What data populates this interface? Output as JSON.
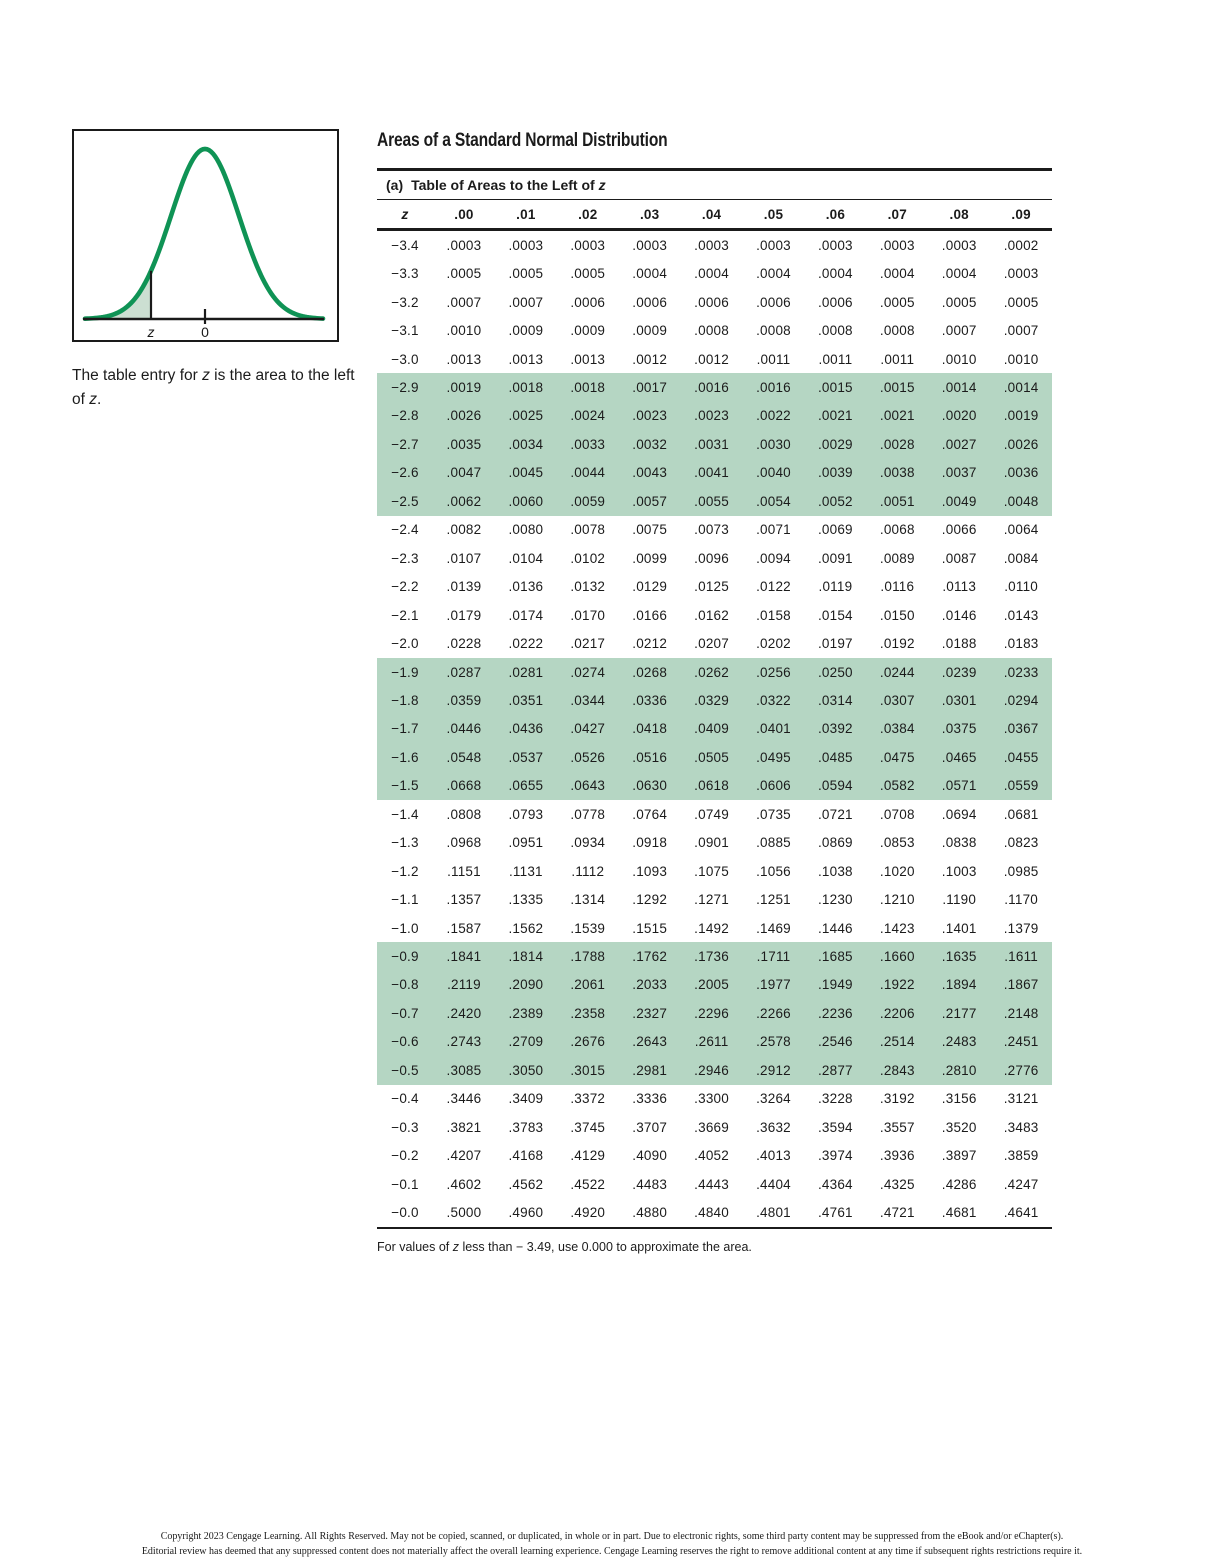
{
  "title": "Areas of a Standard Normal Distribution",
  "figure": {
    "axis_labels": {
      "z": "z",
      "zero": "0"
    },
    "caption": {
      "part1": "The table entry for ",
      "z1": "z",
      "part2": " is the area to the left of ",
      "z2": "z",
      "part3": "."
    }
  },
  "colors": {
    "curve_green": "#0f9355",
    "shade_green": "#ccdfd2",
    "band_green": "#b5d6c3"
  },
  "table": {
    "subtitle": {
      "prefix": "(a)",
      "label": "Table of Areas to the Left of ",
      "z": "z"
    },
    "columns": [
      "z",
      ".00",
      ".01",
      ".02",
      ".03",
      ".04",
      ".05",
      ".06",
      ".07",
      ".08",
      ".09"
    ],
    "rows": [
      [
        "−3.4",
        ".0003",
        ".0003",
        ".0003",
        ".0003",
        ".0003",
        ".0003",
        ".0003",
        ".0003",
        ".0003",
        ".0002"
      ],
      [
        "−3.3",
        ".0005",
        ".0005",
        ".0005",
        ".0004",
        ".0004",
        ".0004",
        ".0004",
        ".0004",
        ".0004",
        ".0003"
      ],
      [
        "−3.2",
        ".0007",
        ".0007",
        ".0006",
        ".0006",
        ".0006",
        ".0006",
        ".0006",
        ".0005",
        ".0005",
        ".0005"
      ],
      [
        "−3.1",
        ".0010",
        ".0009",
        ".0009",
        ".0009",
        ".0008",
        ".0008",
        ".0008",
        ".0008",
        ".0007",
        ".0007"
      ],
      [
        "−3.0",
        ".0013",
        ".0013",
        ".0013",
        ".0012",
        ".0012",
        ".0011",
        ".0011",
        ".0011",
        ".0010",
        ".0010"
      ],
      [
        "−2.9",
        ".0019",
        ".0018",
        ".0018",
        ".0017",
        ".0016",
        ".0016",
        ".0015",
        ".0015",
        ".0014",
        ".0014"
      ],
      [
        "−2.8",
        ".0026",
        ".0025",
        ".0024",
        ".0023",
        ".0023",
        ".0022",
        ".0021",
        ".0021",
        ".0020",
        ".0019"
      ],
      [
        "−2.7",
        ".0035",
        ".0034",
        ".0033",
        ".0032",
        ".0031",
        ".0030",
        ".0029",
        ".0028",
        ".0027",
        ".0026"
      ],
      [
        "−2.6",
        ".0047",
        ".0045",
        ".0044",
        ".0043",
        ".0041",
        ".0040",
        ".0039",
        ".0038",
        ".0037",
        ".0036"
      ],
      [
        "−2.5",
        ".0062",
        ".0060",
        ".0059",
        ".0057",
        ".0055",
        ".0054",
        ".0052",
        ".0051",
        ".0049",
        ".0048"
      ],
      [
        "−2.4",
        ".0082",
        ".0080",
        ".0078",
        ".0075",
        ".0073",
        ".0071",
        ".0069",
        ".0068",
        ".0066",
        ".0064"
      ],
      [
        "−2.3",
        ".0107",
        ".0104",
        ".0102",
        ".0099",
        ".0096",
        ".0094",
        ".0091",
        ".0089",
        ".0087",
        ".0084"
      ],
      [
        "−2.2",
        ".0139",
        ".0136",
        ".0132",
        ".0129",
        ".0125",
        ".0122",
        ".0119",
        ".0116",
        ".0113",
        ".0110"
      ],
      [
        "−2.1",
        ".0179",
        ".0174",
        ".0170",
        ".0166",
        ".0162",
        ".0158",
        ".0154",
        ".0150",
        ".0146",
        ".0143"
      ],
      [
        "−2.0",
        ".0228",
        ".0222",
        ".0217",
        ".0212",
        ".0207",
        ".0202",
        ".0197",
        ".0192",
        ".0188",
        ".0183"
      ],
      [
        "−1.9",
        ".0287",
        ".0281",
        ".0274",
        ".0268",
        ".0262",
        ".0256",
        ".0250",
        ".0244",
        ".0239",
        ".0233"
      ],
      [
        "−1.8",
        ".0359",
        ".0351",
        ".0344",
        ".0336",
        ".0329",
        ".0322",
        ".0314",
        ".0307",
        ".0301",
        ".0294"
      ],
      [
        "−1.7",
        ".0446",
        ".0436",
        ".0427",
        ".0418",
        ".0409",
        ".0401",
        ".0392",
        ".0384",
        ".0375",
        ".0367"
      ],
      [
        "−1.6",
        ".0548",
        ".0537",
        ".0526",
        ".0516",
        ".0505",
        ".0495",
        ".0485",
        ".0475",
        ".0465",
        ".0455"
      ],
      [
        "−1.5",
        ".0668",
        ".0655",
        ".0643",
        ".0630",
        ".0618",
        ".0606",
        ".0594",
        ".0582",
        ".0571",
        ".0559"
      ],
      [
        "−1.4",
        ".0808",
        ".0793",
        ".0778",
        ".0764",
        ".0749",
        ".0735",
        ".0721",
        ".0708",
        ".0694",
        ".0681"
      ],
      [
        "−1.3",
        ".0968",
        ".0951",
        ".0934",
        ".0918",
        ".0901",
        ".0885",
        ".0869",
        ".0853",
        ".0838",
        ".0823"
      ],
      [
        "−1.2",
        ".1151",
        ".1131",
        ".1112",
        ".1093",
        ".1075",
        ".1056",
        ".1038",
        ".1020",
        ".1003",
        ".0985"
      ],
      [
        "−1.1",
        ".1357",
        ".1335",
        ".1314",
        ".1292",
        ".1271",
        ".1251",
        ".1230",
        ".1210",
        ".1190",
        ".1170"
      ],
      [
        "−1.0",
        ".1587",
        ".1562",
        ".1539",
        ".1515",
        ".1492",
        ".1469",
        ".1446",
        ".1423",
        ".1401",
        ".1379"
      ],
      [
        "−0.9",
        ".1841",
        ".1814",
        ".1788",
        ".1762",
        ".1736",
        ".1711",
        ".1685",
        ".1660",
        ".1635",
        ".1611"
      ],
      [
        "−0.8",
        ".2119",
        ".2090",
        ".2061",
        ".2033",
        ".2005",
        ".1977",
        ".1949",
        ".1922",
        ".1894",
        ".1867"
      ],
      [
        "−0.7",
        ".2420",
        ".2389",
        ".2358",
        ".2327",
        ".2296",
        ".2266",
        ".2236",
        ".2206",
        ".2177",
        ".2148"
      ],
      [
        "−0.6",
        ".2743",
        ".2709",
        ".2676",
        ".2643",
        ".2611",
        ".2578",
        ".2546",
        ".2514",
        ".2483",
        ".2451"
      ],
      [
        "−0.5",
        ".3085",
        ".3050",
        ".3015",
        ".2981",
        ".2946",
        ".2912",
        ".2877",
        ".2843",
        ".2810",
        ".2776"
      ],
      [
        "−0.4",
        ".3446",
        ".3409",
        ".3372",
        ".3336",
        ".3300",
        ".3264",
        ".3228",
        ".3192",
        ".3156",
        ".3121"
      ],
      [
        "−0.3",
        ".3821",
        ".3783",
        ".3745",
        ".3707",
        ".3669",
        ".3632",
        ".3594",
        ".3557",
        ".3520",
        ".3483"
      ],
      [
        "−0.2",
        ".4207",
        ".4168",
        ".4129",
        ".4090",
        ".4052",
        ".4013",
        ".3974",
        ".3936",
        ".3897",
        ".3859"
      ],
      [
        "−0.1",
        ".4602",
        ".4562",
        ".4522",
        ".4483",
        ".4443",
        ".4404",
        ".4364",
        ".4325",
        ".4286",
        ".4247"
      ],
      [
        "−0.0",
        ".5000",
        ".4960",
        ".4920",
        ".4880",
        ".4840",
        ".4801",
        ".4761",
        ".4721",
        ".4681",
        ".4641"
      ]
    ],
    "footnote": {
      "part1": "For values of ",
      "z": "z",
      "part2": " less than − 3.49, use 0.000 to approximate the area."
    }
  },
  "footer": {
    "line1": "Copyright 2023 Cengage Learning. All Rights Reserved. May not be copied, scanned, or duplicated, in whole or in part. Due to electronic rights, some third party content may be suppressed from the eBook and/or eChapter(s).",
    "line2": "Editorial review has deemed that any suppressed content does not materially affect the overall learning experience. Cengage Learning reserves the right to remove additional content at any time if subsequent rights restrictions require it."
  }
}
